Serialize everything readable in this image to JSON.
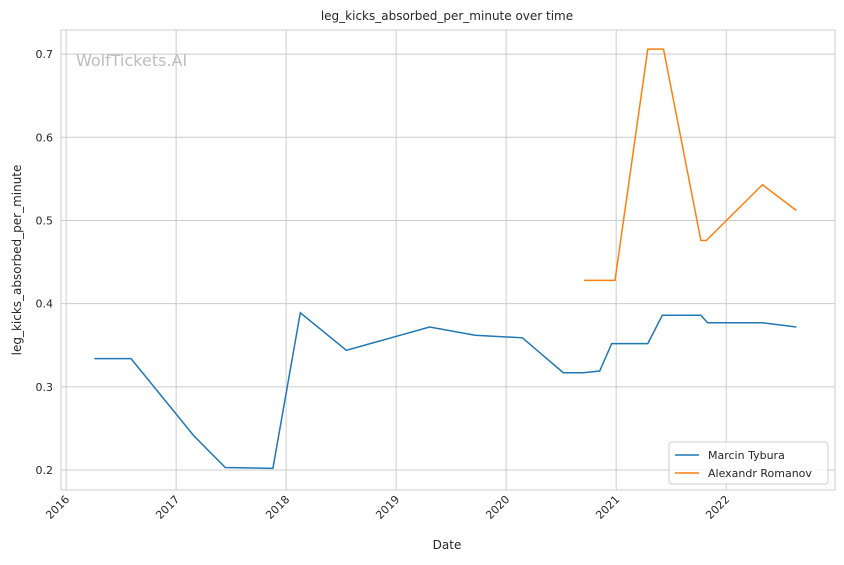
{
  "chart_data": {
    "type": "line",
    "title": "leg_kicks_absorbed_per_minute over time",
    "xlabel": "Date",
    "ylabel": "leg_kicks_absorbed_per_minute",
    "watermark": "WolfTickets.AI",
    "xlim": [
      "2015-12-15",
      "2022-12-28"
    ],
    "ylim": [
      0.176,
      0.729
    ],
    "x_ticks": [
      "2016",
      "2017",
      "2018",
      "2019",
      "2020",
      "2021",
      "2022"
    ],
    "y_ticks": [
      0.2,
      0.3,
      0.4,
      0.5,
      0.6,
      0.7
    ],
    "y_tick_labels": [
      "0.2",
      "0.3",
      "0.4",
      "0.5",
      "0.6",
      "0.7"
    ],
    "grid": true,
    "legend_position": "bottom-right",
    "series": [
      {
        "name": "Marcin Tybura",
        "color": "#1f77b4",
        "x": [
          "2016-04-04",
          "2016-08-04",
          "2017-03-01",
          "2017-06-13",
          "2017-11-18",
          "2018-02-17",
          "2018-07-20",
          "2019-04-22",
          "2019-09-20",
          "2020-02-24",
          "2020-07-09",
          "2020-09-13",
          "2020-11-07",
          "2020-12-17",
          "2021-04-16",
          "2021-06-03",
          "2021-10-09",
          "2021-10-31",
          "2022-05-01",
          "2022-08-22"
        ],
        "values": [
          0.334,
          0.334,
          0.241,
          0.203,
          0.202,
          0.389,
          0.344,
          0.372,
          0.362,
          0.359,
          0.317,
          0.317,
          0.319,
          0.352,
          0.352,
          0.386,
          0.386,
          0.377,
          0.377,
          0.372
        ]
      },
      {
        "name": "Alexandr Romanov",
        "color": "#ff7f0e",
        "x": [
          "2020-09-16",
          "2020-12-28",
          "2021-04-16",
          "2021-06-07",
          "2021-10-09",
          "2021-10-27",
          "2022-05-01",
          "2022-08-22"
        ],
        "values": [
          0.428,
          0.428,
          0.706,
          0.706,
          0.476,
          0.476,
          0.543,
          0.512
        ]
      }
    ]
  }
}
